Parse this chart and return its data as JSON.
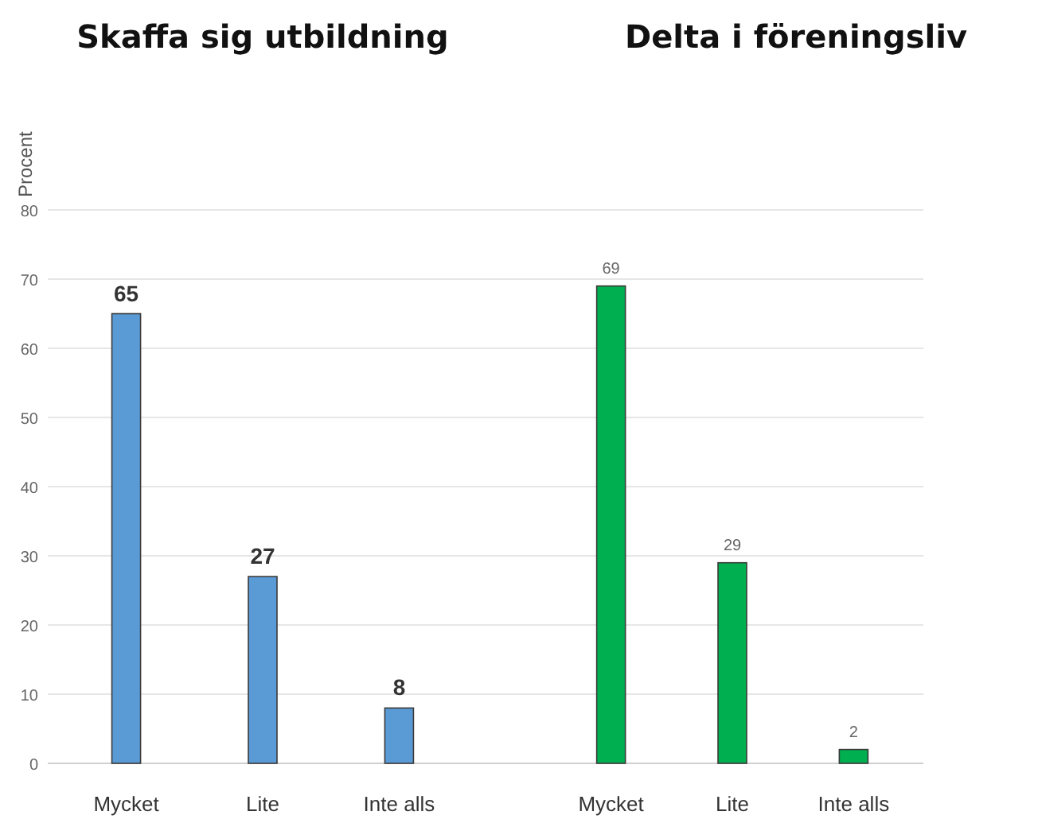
{
  "chart_data": [
    {
      "type": "bar",
      "title": "Skaffa sig utbildning",
      "ylabel": "Procent",
      "categories": [
        "Mycket",
        "Lite",
        "Inte alls"
      ],
      "values": [
        65,
        27,
        8
      ],
      "color": "#5b9bd5",
      "ylim": [
        0,
        80
      ],
      "yticks": [
        0,
        10,
        20,
        30,
        40,
        50,
        60,
        70,
        80
      ],
      "grid": "y",
      "data_labels": true
    },
    {
      "type": "bar",
      "title": "Delta i föreningsliv",
      "categories": [
        "Mycket",
        "Lite",
        "Inte alls"
      ],
      "values": [
        69,
        29,
        2
      ],
      "color": "#00b050",
      "ylim": [
        0,
        80
      ],
      "yticks": [
        0,
        10,
        20,
        30,
        40,
        50,
        60,
        70,
        80
      ],
      "grid": "y",
      "data_labels": true,
      "tick_labels": "x"
    }
  ]
}
